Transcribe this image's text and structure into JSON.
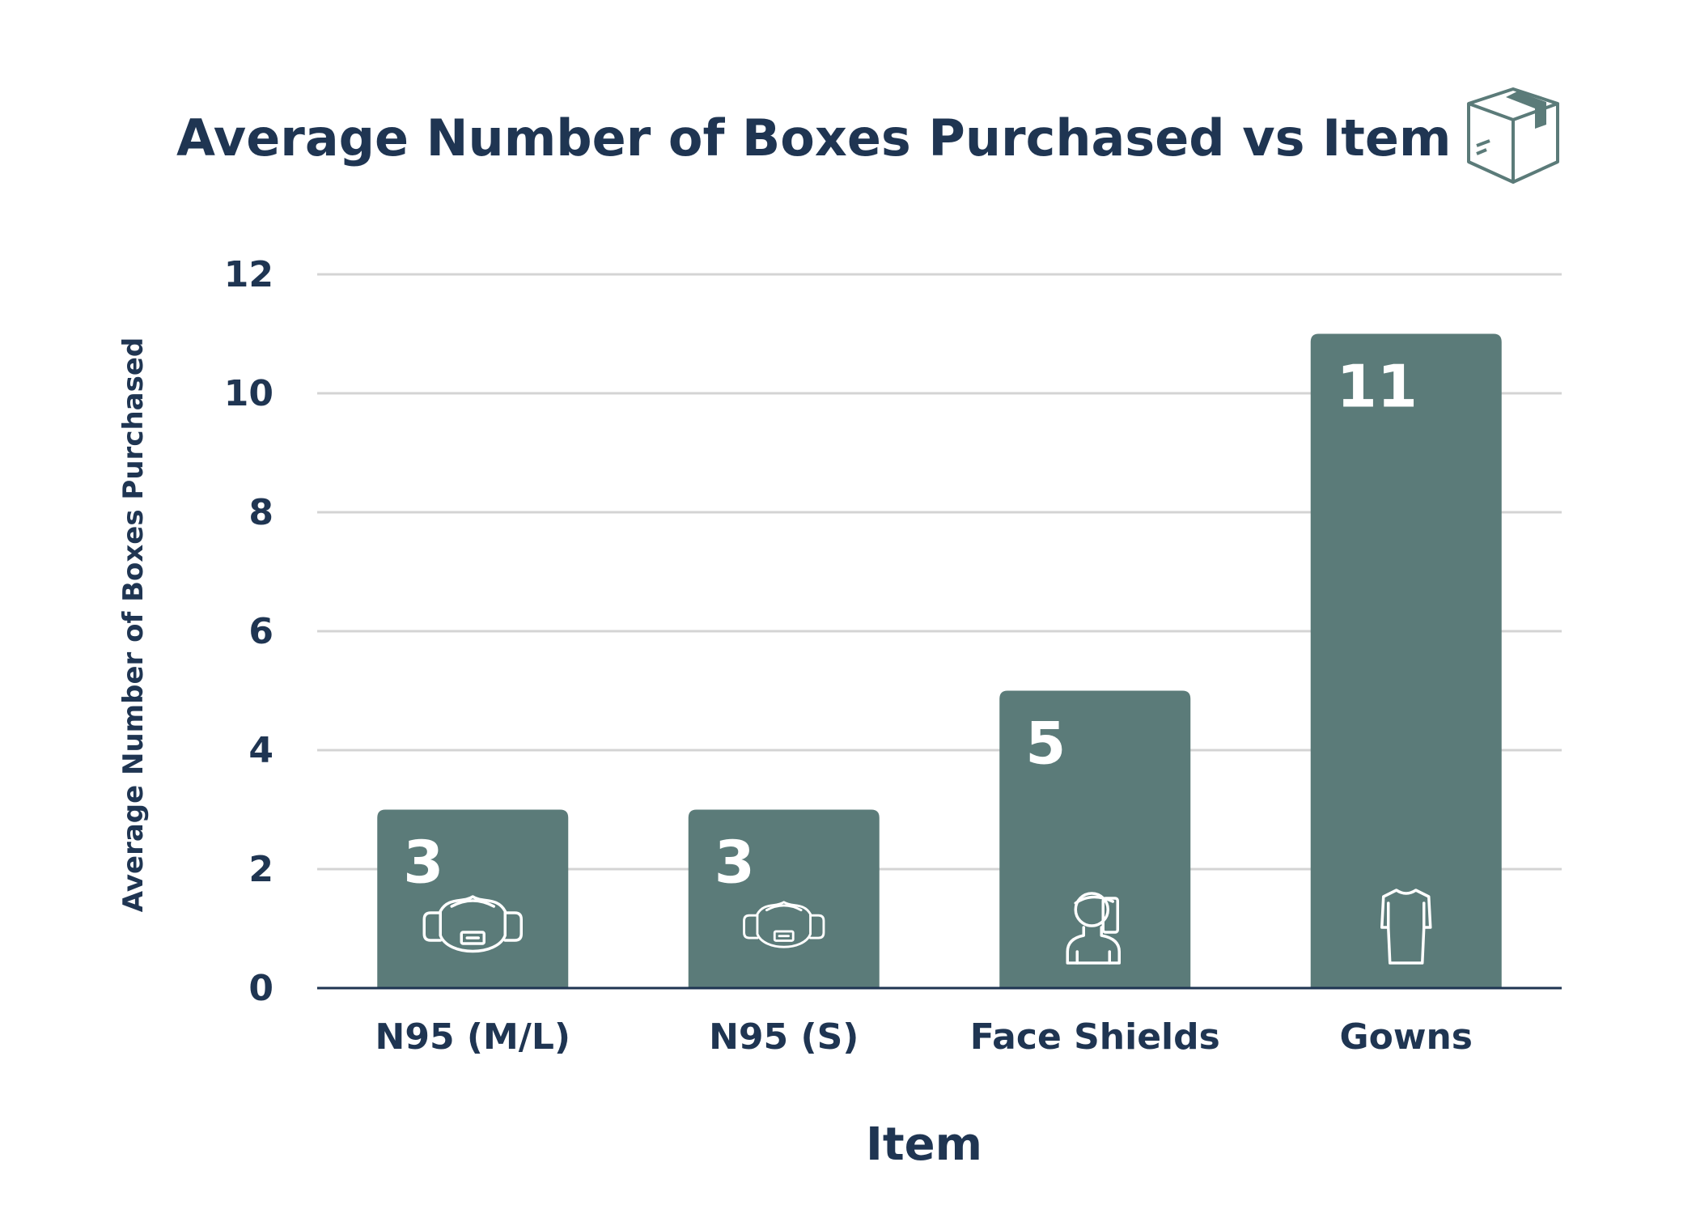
{
  "colors": {
    "bar": "#5b7b79",
    "text": "#1f3552",
    "grid": "#d4d4d4",
    "axis": "#1f3552",
    "icon_stroke": "#ffffff",
    "box_icon": "#5b7b79"
  },
  "icons": {
    "header": "box-icon",
    "bar_icons": [
      "mask-icon",
      "mask-icon",
      "face-shield-icon",
      "gown-icon"
    ]
  },
  "chart_data": {
    "type": "bar",
    "title": "Average Number of Boxes Purchased vs Item",
    "xlabel": "Item",
    "ylabel": "Average Number of Boxes Purchased",
    "categories": [
      "N95 (M/L)",
      "N95 (S)",
      "Face Shields",
      "Gowns"
    ],
    "values": [
      3,
      3,
      5,
      11
    ],
    "data_labels": [
      "3",
      "3",
      "5",
      "11"
    ],
    "ylim": [
      0,
      12
    ],
    "yticks": [
      "0",
      "2",
      "4",
      "6",
      "8",
      "10",
      "12"
    ],
    "grid": true,
    "legend": "none"
  }
}
